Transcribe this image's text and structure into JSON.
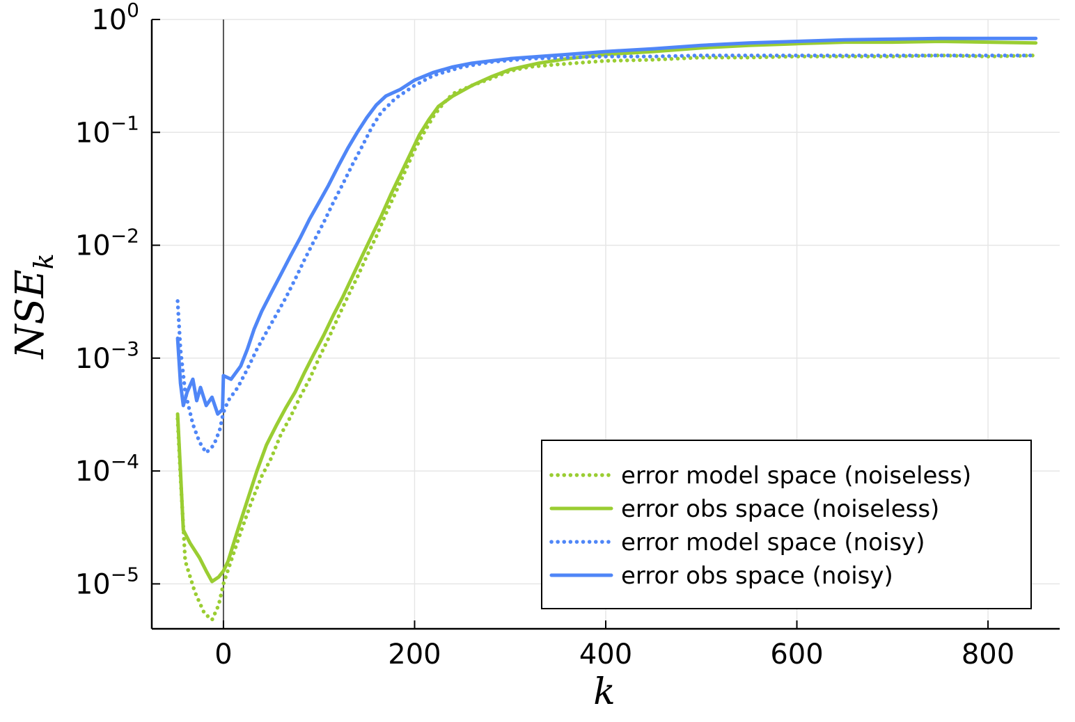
{
  "chart_data": {
    "type": "line",
    "title": "",
    "xlabel": "k",
    "ylabel": "NSE",
    "ylabel_subscript": "k",
    "xlim": [
      -75,
      875
    ],
    "ylim": [
      4e-06,
      1
    ],
    "y_scale": "log",
    "x_ticks": [
      "0",
      "200",
      "400",
      "600",
      "800"
    ],
    "x_tick_values": [
      0,
      200,
      400,
      600,
      800
    ],
    "y_ticks": [
      {
        "base": "10",
        "exp": "0",
        "value": 1
      },
      {
        "base": "10",
        "exp": "−1",
        "value": 0.1
      },
      {
        "base": "10",
        "exp": "−2",
        "value": 0.01
      },
      {
        "base": "10",
        "exp": "−3",
        "value": 0.001
      },
      {
        "base": "10",
        "exp": "−4",
        "value": 0.0001
      },
      {
        "base": "10",
        "exp": "−5",
        "value": 1e-05
      }
    ],
    "vline_x": 0,
    "grid": true,
    "legend_position": "bottom-right",
    "series": [
      {
        "name": "error model space (noiseless)",
        "color": "#9acd32",
        "style": "dotted",
        "points": [
          [
            -48,
            0.00029
          ],
          [
            -45,
            9e-05
          ],
          [
            -40,
            1.6e-05
          ],
          [
            -30,
            8.5e-06
          ],
          [
            -20,
            5.5e-06
          ],
          [
            -12,
            4.8e-06
          ],
          [
            -5,
            6.5e-06
          ],
          [
            0,
            1e-05
          ],
          [
            10,
            1.8e-05
          ],
          [
            20,
            3.2e-05
          ],
          [
            30,
            5.5e-05
          ],
          [
            40,
            9e-05
          ],
          [
            50,
            0.00013
          ],
          [
            60,
            0.00021
          ],
          [
            70,
            0.0003
          ],
          [
            80,
            0.00045
          ],
          [
            90,
            0.00065
          ],
          [
            100,
            0.001
          ],
          [
            110,
            0.0015
          ],
          [
            120,
            0.0023
          ],
          [
            130,
            0.0035
          ],
          [
            140,
            0.0052
          ],
          [
            150,
            0.008
          ],
          [
            160,
            0.012
          ],
          [
            170,
            0.019
          ],
          [
            180,
            0.029
          ],
          [
            190,
            0.045
          ],
          [
            200,
            0.07
          ],
          [
            210,
            0.1
          ],
          [
            220,
            0.14
          ],
          [
            230,
            0.18
          ],
          [
            240,
            0.22
          ],
          [
            260,
            0.26
          ],
          [
            280,
            0.3
          ],
          [
            300,
            0.35
          ],
          [
            320,
            0.38
          ],
          [
            350,
            0.4
          ],
          [
            400,
            0.43
          ],
          [
            450,
            0.44
          ],
          [
            500,
            0.46
          ],
          [
            550,
            0.46
          ],
          [
            600,
            0.47
          ],
          [
            650,
            0.47
          ],
          [
            700,
            0.47
          ],
          [
            750,
            0.48
          ],
          [
            800,
            0.47
          ],
          [
            850,
            0.48
          ]
        ]
      },
      {
        "name": "error obs space (noiseless)",
        "color": "#9acd32",
        "style": "solid",
        "points": [
          [
            -48,
            0.00032
          ],
          [
            -45,
            0.0001
          ],
          [
            -42,
            3e-05
          ],
          [
            -35,
            2.3e-05
          ],
          [
            -25,
            1.7e-05
          ],
          [
            -18,
            1.3e-05
          ],
          [
            -12,
            1.05e-05
          ],
          [
            -5,
            1.15e-05
          ],
          [
            0,
            1.3e-05
          ],
          [
            5,
            1.6e-05
          ],
          [
            15,
            3e-05
          ],
          [
            25,
            5.5e-05
          ],
          [
            35,
            0.0001
          ],
          [
            45,
            0.00017
          ],
          [
            55,
            0.00025
          ],
          [
            65,
            0.00036
          ],
          [
            75,
            0.0005
          ],
          [
            85,
            0.00075
          ],
          [
            95,
            0.0011
          ],
          [
            105,
            0.0016
          ],
          [
            115,
            0.0024
          ],
          [
            125,
            0.0035
          ],
          [
            135,
            0.0053
          ],
          [
            145,
            0.008
          ],
          [
            155,
            0.012
          ],
          [
            165,
            0.018
          ],
          [
            175,
            0.028
          ],
          [
            185,
            0.042
          ],
          [
            195,
            0.063
          ],
          [
            205,
            0.095
          ],
          [
            215,
            0.13
          ],
          [
            225,
            0.17
          ],
          [
            240,
            0.21
          ],
          [
            260,
            0.26
          ],
          [
            280,
            0.31
          ],
          [
            300,
            0.36
          ],
          [
            330,
            0.41
          ],
          [
            360,
            0.45
          ],
          [
            400,
            0.49
          ],
          [
            450,
            0.52
          ],
          [
            500,
            0.56
          ],
          [
            550,
            0.59
          ],
          [
            600,
            0.61
          ],
          [
            650,
            0.63
          ],
          [
            700,
            0.63
          ],
          [
            750,
            0.64
          ],
          [
            800,
            0.63
          ],
          [
            850,
            0.62
          ]
        ]
      },
      {
        "name": "error model space (noisy)",
        "color": "#4f86f7",
        "style": "dotted",
        "points": [
          [
            -48,
            0.0032
          ],
          [
            -45,
            0.0012
          ],
          [
            -40,
            0.0005
          ],
          [
            -32,
            0.00026
          ],
          [
            -25,
            0.00018
          ],
          [
            -18,
            0.000145
          ],
          [
            -10,
            0.00017
          ],
          [
            -4,
            0.00023
          ],
          [
            0,
            0.00033
          ],
          [
            5,
            0.00042
          ],
          [
            15,
            0.00055
          ],
          [
            25,
            0.0008
          ],
          [
            35,
            0.0012
          ],
          [
            45,
            0.0017
          ],
          [
            55,
            0.0024
          ],
          [
            65,
            0.0034
          ],
          [
            75,
            0.005
          ],
          [
            85,
            0.0075
          ],
          [
            95,
            0.011
          ],
          [
            105,
            0.016
          ],
          [
            115,
            0.024
          ],
          [
            125,
            0.035
          ],
          [
            135,
            0.052
          ],
          [
            145,
            0.075
          ],
          [
            155,
            0.11
          ],
          [
            165,
            0.15
          ],
          [
            180,
            0.2
          ],
          [
            200,
            0.26
          ],
          [
            220,
            0.32
          ],
          [
            250,
            0.38
          ],
          [
            280,
            0.42
          ],
          [
            320,
            0.45
          ],
          [
            360,
            0.46
          ],
          [
            400,
            0.47
          ],
          [
            450,
            0.47
          ],
          [
            500,
            0.48
          ],
          [
            550,
            0.48
          ],
          [
            600,
            0.48
          ],
          [
            650,
            0.48
          ],
          [
            700,
            0.48
          ],
          [
            750,
            0.48
          ],
          [
            800,
            0.48
          ],
          [
            850,
            0.48
          ]
        ]
      },
      {
        "name": "error obs space (noisy)",
        "color": "#4f86f7",
        "style": "solid",
        "points": [
          [
            -48,
            0.0015
          ],
          [
            -45,
            0.0006
          ],
          [
            -42,
            0.00038
          ],
          [
            -38,
            0.0005
          ],
          [
            -32,
            0.00065
          ],
          [
            -28,
            0.00042
          ],
          [
            -24,
            0.00055
          ],
          [
            -18,
            0.00038
          ],
          [
            -12,
            0.00045
          ],
          [
            -6,
            0.00032
          ],
          [
            -1,
            0.00035
          ],
          [
            0,
            0.0007
          ],
          [
            8,
            0.00065
          ],
          [
            18,
            0.00085
          ],
          [
            25,
            0.0012
          ],
          [
            32,
            0.0018
          ],
          [
            40,
            0.0026
          ],
          [
            50,
            0.0038
          ],
          [
            60,
            0.0055
          ],
          [
            70,
            0.008
          ],
          [
            80,
            0.0115
          ],
          [
            90,
            0.017
          ],
          [
            100,
            0.024
          ],
          [
            110,
            0.034
          ],
          [
            120,
            0.05
          ],
          [
            130,
            0.072
          ],
          [
            140,
            0.1
          ],
          [
            150,
            0.135
          ],
          [
            160,
            0.175
          ],
          [
            170,
            0.21
          ],
          [
            185,
            0.24
          ],
          [
            200,
            0.29
          ],
          [
            220,
            0.34
          ],
          [
            240,
            0.38
          ],
          [
            260,
            0.41
          ],
          [
            280,
            0.43
          ],
          [
            300,
            0.45
          ],
          [
            330,
            0.47
          ],
          [
            360,
            0.49
          ],
          [
            400,
            0.52
          ],
          [
            450,
            0.55
          ],
          [
            500,
            0.59
          ],
          [
            550,
            0.62
          ],
          [
            600,
            0.64
          ],
          [
            650,
            0.66
          ],
          [
            700,
            0.67
          ],
          [
            750,
            0.68
          ],
          [
            800,
            0.68
          ],
          [
            850,
            0.68
          ]
        ]
      }
    ]
  }
}
